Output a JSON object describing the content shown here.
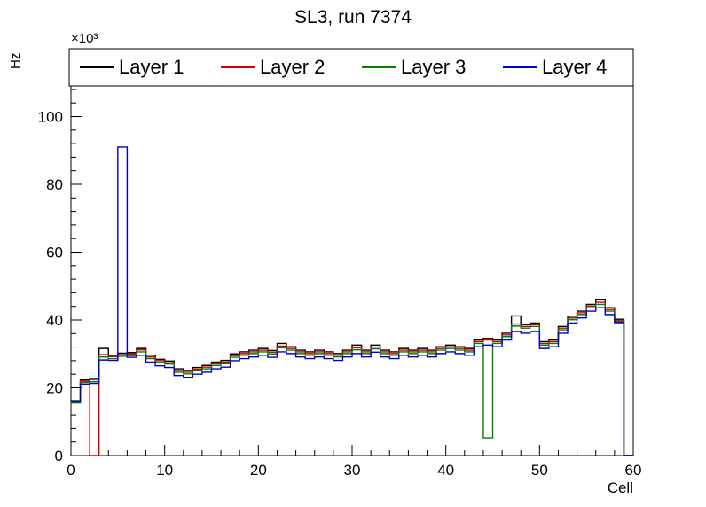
{
  "chart_data": {
    "type": "line",
    "style": "root-step-histogram",
    "title": "SL3, run 7374",
    "xlabel": "Cell",
    "ylabel": "Hz",
    "exponent_label": "×10³",
    "values_unit": "×10³ Hz",
    "xlim": [
      0,
      60
    ],
    "ylim": [
      0,
      120
    ],
    "x_ticks": [
      0,
      10,
      20,
      30,
      40,
      50,
      60
    ],
    "y_ticks": [
      0,
      20,
      40,
      60,
      80,
      100
    ],
    "bin_width": 1,
    "grid": false,
    "legend_position": "top",
    "series": [
      {
        "name": "Layer 1",
        "color": "#000000",
        "values": [
          16.2,
          22.3,
          22.5,
          31.6,
          29.6,
          30.2,
          30.4,
          31.6,
          29.6,
          28.4,
          27.9,
          25.6,
          25.1,
          26.0,
          26.6,
          27.6,
          28.1,
          30.0,
          30.6,
          31.1,
          31.6,
          31.0,
          33.1,
          32.1,
          31.1,
          30.6,
          31.1,
          30.6,
          30.1,
          31.1,
          32.6,
          31.1,
          32.6,
          31.1,
          30.6,
          31.6,
          31.1,
          31.6,
          31.1,
          32.1,
          32.6,
          32.1,
          31.6,
          34.1,
          34.6,
          34.1,
          36.1,
          41.2,
          38.6,
          39.1,
          33.6,
          34.1,
          38.1,
          41.1,
          42.6,
          44.6,
          46.1,
          43.6,
          40.2,
          0
        ]
      },
      {
        "name": "Layer 2",
        "color": "#d40000",
        "values": [
          15.7,
          22.0,
          0,
          29.8,
          29.2,
          29.8,
          30.0,
          31.2,
          29.1,
          28.0,
          27.4,
          25.1,
          24.6,
          25.5,
          26.1,
          27.1,
          27.6,
          29.5,
          30.1,
          30.6,
          31.1,
          30.5,
          32.3,
          31.6,
          30.6,
          30.1,
          30.6,
          30.1,
          29.6,
          30.6,
          31.8,
          30.6,
          32.0,
          30.6,
          30.1,
          31.1,
          30.6,
          31.1,
          30.6,
          31.6,
          32.1,
          31.6,
          31.1,
          33.6,
          34.1,
          33.6,
          35.6,
          38.8,
          38.1,
          38.6,
          33.1,
          33.6,
          37.6,
          40.6,
          42.1,
          44.1,
          45.2,
          43.1,
          39.8,
          0
        ]
      },
      {
        "name": "Layer 3",
        "color": "#008000",
        "values": [
          15.5,
          21.6,
          21.8,
          29.1,
          28.6,
          29.3,
          29.5,
          30.6,
          28.6,
          27.5,
          27.0,
          24.6,
          24.1,
          25.0,
          25.6,
          26.6,
          27.1,
          29.0,
          29.6,
          30.1,
          30.6,
          30.0,
          31.8,
          31.1,
          30.1,
          29.6,
          30.1,
          29.6,
          29.1,
          30.1,
          31.2,
          30.1,
          31.5,
          30.1,
          29.6,
          30.6,
          30.1,
          30.6,
          30.1,
          31.1,
          31.6,
          31.1,
          30.6,
          33.1,
          5.2,
          33.1,
          35.1,
          38.2,
          37.6,
          38.1,
          32.6,
          33.1,
          37.1,
          40.1,
          41.6,
          43.6,
          44.6,
          42.6,
          39.5,
          0
        ]
      },
      {
        "name": "Layer 4",
        "color": "#0000cc",
        "values": [
          16.0,
          21.1,
          21.3,
          28.2,
          28.1,
          91.0,
          29.0,
          29.6,
          27.6,
          26.5,
          26.0,
          23.6,
          23.1,
          24.0,
          24.6,
          25.6,
          26.1,
          28.0,
          28.6,
          29.1,
          29.6,
          29.0,
          30.6,
          30.1,
          29.1,
          28.6,
          29.1,
          28.6,
          28.1,
          29.1,
          30.1,
          29.1,
          30.5,
          29.1,
          28.6,
          29.6,
          29.1,
          29.6,
          29.1,
          30.1,
          30.6,
          30.1,
          29.6,
          32.1,
          32.6,
          32.1,
          34.1,
          36.6,
          36.1,
          36.6,
          31.6,
          32.1,
          36.1,
          39.1,
          40.6,
          42.6,
          43.6,
          41.6,
          39.2,
          0
        ]
      }
    ]
  }
}
